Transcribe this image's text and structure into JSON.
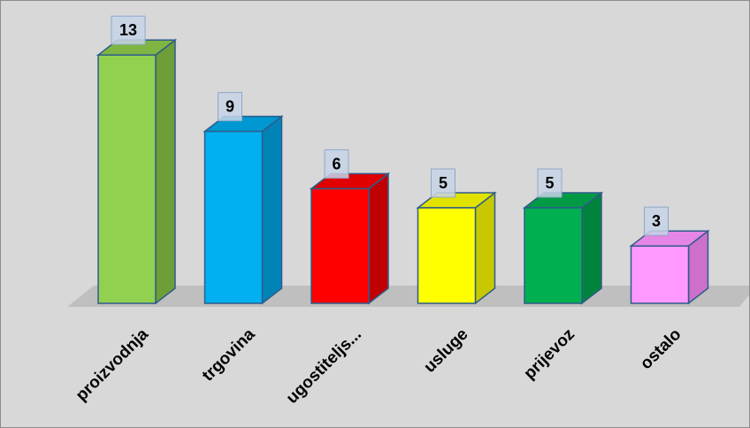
{
  "chart_data": {
    "type": "bar",
    "title": "",
    "xlabel": "",
    "ylabel": "",
    "categories": [
      "proizvodnja",
      "trgovina",
      "ugostiteljs...",
      "usluge",
      "prijevoz",
      "ostalo"
    ],
    "values": [
      13,
      9,
      6,
      5,
      5,
      3
    ],
    "ylim": [
      0,
      13
    ],
    "grid": false,
    "legend": "none",
    "colors": {
      "background": "#d8d8d8",
      "floor": "#bfbfbf",
      "bar_outline": "#2e5c8a",
      "bars": [
        {
          "front": "#92d050",
          "side": "#6e9e38",
          "top": "#7fb542"
        },
        {
          "front": "#00b0f0",
          "side": "#0084b8",
          "top": "#0098d2"
        },
        {
          "front": "#ff0000",
          "side": "#c00000",
          "top": "#e00000"
        },
        {
          "front": "#ffff00",
          "side": "#c8c800",
          "top": "#e2e200"
        },
        {
          "front": "#00b050",
          "side": "#00843c",
          "top": "#009a46"
        },
        {
          "front": "#ff99ff",
          "side": "#cc70cc",
          "top": "#e585e5"
        }
      ]
    }
  }
}
